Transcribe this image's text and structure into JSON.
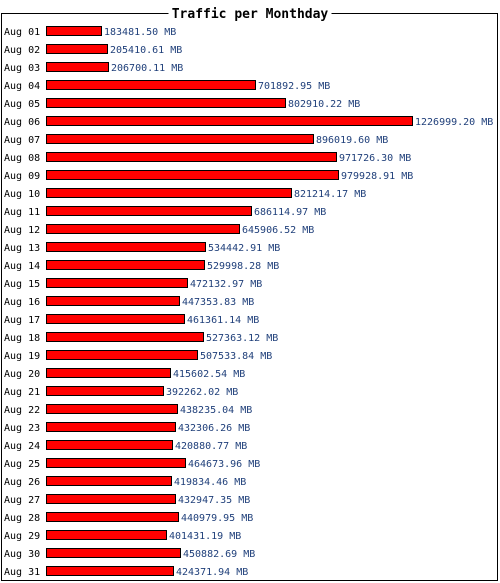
{
  "chart_data": {
    "type": "bar",
    "orientation": "horizontal",
    "title": "Traffic per Monthday",
    "unit": "MB",
    "categories": [
      "Aug 01",
      "Aug 02",
      "Aug 03",
      "Aug 04",
      "Aug 05",
      "Aug 06",
      "Aug 07",
      "Aug 08",
      "Aug 09",
      "Aug 10",
      "Aug 11",
      "Aug 12",
      "Aug 13",
      "Aug 14",
      "Aug 15",
      "Aug 16",
      "Aug 17",
      "Aug 18",
      "Aug 19",
      "Aug 20",
      "Aug 21",
      "Aug 22",
      "Aug 23",
      "Aug 24",
      "Aug 25",
      "Aug 26",
      "Aug 27",
      "Aug 28",
      "Aug 29",
      "Aug 30",
      "Aug 31"
    ],
    "values": [
      183481.5,
      205410.61,
      206700.11,
      701892.95,
      802910.22,
      1226999.2,
      896019.6,
      971726.3,
      979928.91,
      821214.17,
      686114.97,
      645906.52,
      534442.91,
      529998.28,
      472132.97,
      447353.83,
      461361.14,
      527363.12,
      507533.84,
      415602.54,
      392262.02,
      438235.04,
      432306.26,
      420880.77,
      464673.96,
      419834.46,
      432947.35,
      440979.95,
      401431.19,
      450882.69,
      424371.94
    ],
    "value_labels": [
      "183481.50 MB",
      "205410.61 MB",
      "206700.11 MB",
      "701892.95 MB",
      "802910.22 MB",
      "1226999.20 MB",
      "896019.60 MB",
      "971726.30 MB",
      "979928.91 MB",
      "821214.17 MB",
      "686114.97 MB",
      "645906.52 MB",
      "534442.91 MB",
      "529998.28 MB",
      "472132.97 MB",
      "447353.83 MB",
      "461361.14 MB",
      "527363.12 MB",
      "507533.84 MB",
      "415602.54 MB",
      "392262.02 MB",
      "438235.04 MB",
      "432306.26 MB",
      "420880.77 MB",
      "464673.96 MB",
      "419834.46 MB",
      "432947.35 MB",
      "440979.95 MB",
      "401431.19 MB",
      "450882.69 MB",
      "424371.94 MB"
    ],
    "colors": {
      "bar_fill": "#ff0000",
      "bar_stroke": "#000000",
      "value_text": "#1f3f7a",
      "label_text": "#000000",
      "frame": "#000000"
    },
    "grid": false,
    "legend": "none"
  }
}
